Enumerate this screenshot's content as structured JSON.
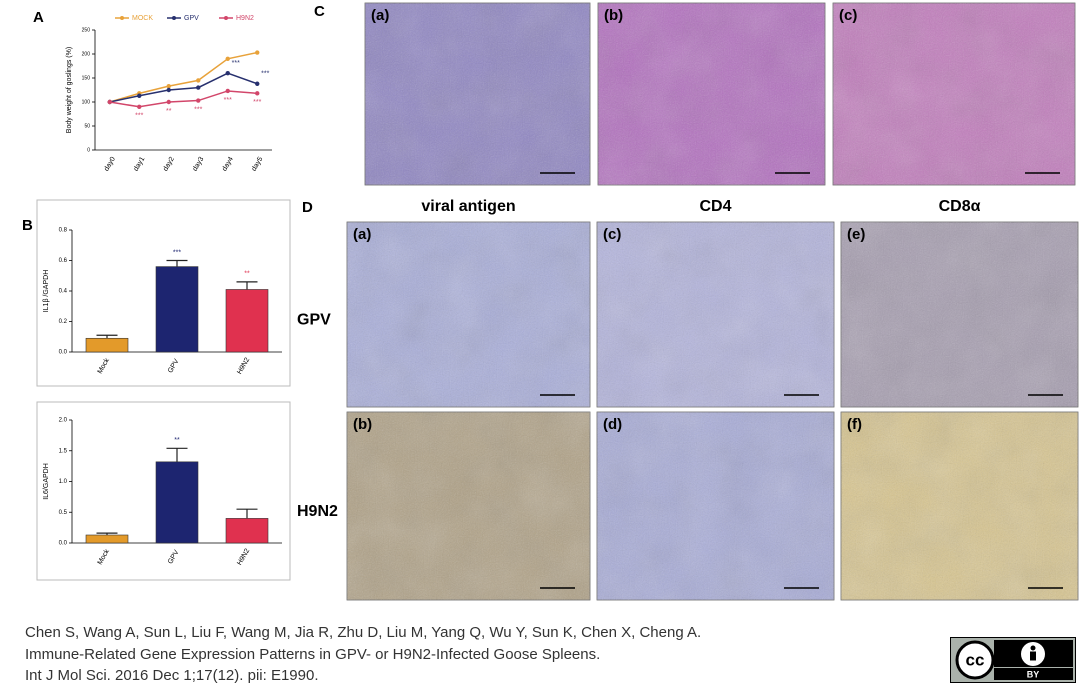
{
  "panel_labels": [
    "A",
    "B",
    "C",
    "D"
  ],
  "chart_data": [
    {
      "type": "line",
      "y_label": "Body weight of goslings (%)",
      "categories": [
        "day0",
        "day1",
        "day2",
        "day3",
        "day4",
        "day5"
      ],
      "ylim": [
        0,
        250
      ],
      "yticks": [
        0,
        50,
        100,
        150,
        200,
        250
      ],
      "series": [
        {
          "name": "MOCK",
          "color": "#e8a23a",
          "values": [
            100,
            118,
            133,
            145,
            190,
            203
          ],
          "labels": [
            null,
            null,
            null,
            null,
            null,
            null
          ]
        },
        {
          "name": "GPV",
          "color": "#27306e",
          "values": [
            100,
            113,
            125,
            130,
            160,
            138
          ],
          "labels": [
            null,
            null,
            null,
            null,
            "***",
            "***"
          ]
        },
        {
          "name": "H9N2",
          "color": "#d2466a",
          "values": [
            100,
            90,
            100,
            103,
            123,
            118
          ],
          "labels": [
            null,
            "***",
            "**",
            "***",
            "***",
            "***"
          ]
        }
      ]
    },
    {
      "type": "bar",
      "y_label": "IL1β /GAPDH",
      "categories": [
        "Mock",
        "GPV",
        "H9N2"
      ],
      "values": [
        0.09,
        0.56,
        0.41
      ],
      "errors": [
        0.02,
        0.04,
        0.05
      ],
      "colors": [
        "#e39a2a",
        "#1d2570",
        "#e0314f"
      ],
      "labels": [
        null,
        "***",
        "**"
      ],
      "ylim": [
        0,
        0.8
      ],
      "yticks": [
        {
          "value": 0,
          "label": "0.0"
        },
        0.2,
        0.4,
        0.6,
        0.8
      ]
    },
    {
      "type": "bar",
      "y_label": "IL6/GAPDH",
      "categories": [
        "Mock",
        "GPV",
        "H9N2"
      ],
      "values": [
        0.13,
        1.32,
        0.4
      ],
      "errors": [
        0.03,
        0.22,
        0.15
      ],
      "colors": [
        "#e39a2a",
        "#1d2570",
        "#e0314f"
      ],
      "labels": [
        null,
        "**",
        null
      ],
      "ylim": [
        0,
        2
      ],
      "yticks": [
        {
          "value": 0,
          "label": "0.0"
        },
        0.5,
        {
          "value": 1,
          "label": "1.0"
        },
        1.5,
        {
          "value": 2,
          "label": "2.0"
        }
      ]
    }
  ],
  "panel_c": {
    "images": [
      "(a)",
      "(b)",
      "(c)"
    ]
  },
  "panel_d": {
    "columns": [
      "viral antigen",
      "CD4",
      "CD8α"
    ],
    "rows": [
      "GPV",
      "H9N2"
    ],
    "images": [
      "(a)",
      "(b)",
      "(c)",
      "(d)",
      "(e)",
      "(f)"
    ]
  },
  "citation": [
    "Chen S, Wang A, Sun L, Liu F, Wang M, Jia R, Zhu D, Liu M, Yang Q, Wu Y, Sun K, Chen X, Cheng A.",
    "Immune-Related Gene Expression Patterns in GPV- or H9N2-Infected Goose Spleens.",
    "Int J Mol Sci. 2016 Dec 1;17(12). pii: E1990."
  ],
  "license": {
    "cc": "cc",
    "by": "BY"
  }
}
